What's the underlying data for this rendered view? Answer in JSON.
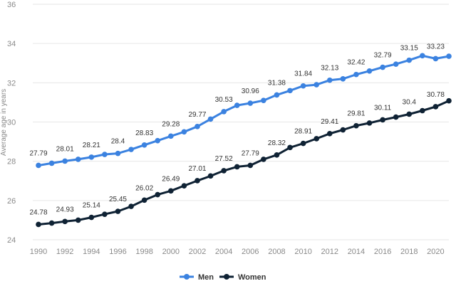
{
  "chart_data": {
    "type": "line",
    "ylabel": "Average age in years",
    "xlabel": "",
    "ylim": [
      24,
      36
    ],
    "yticks": [
      24,
      26,
      28,
      30,
      32,
      34,
      36
    ],
    "xlim": [
      1990,
      2021
    ],
    "xticks": [
      1990,
      1992,
      1994,
      1996,
      1998,
      2000,
      2002,
      2004,
      2006,
      2008,
      2010,
      2012,
      2014,
      2016,
      2018,
      2020
    ],
    "grid": "horizontal",
    "legend_position": "bottom-center",
    "x": [
      1990,
      1991,
      1992,
      1993,
      1994,
      1995,
      1996,
      1997,
      1998,
      1999,
      2000,
      2001,
      2002,
      2003,
      2004,
      2005,
      2006,
      2007,
      2008,
      2009,
      2010,
      2011,
      2012,
      2013,
      2014,
      2015,
      2016,
      2017,
      2018,
      2019,
      2020,
      2021
    ],
    "series": [
      {
        "name": "Men",
        "color": "#3b82e0",
        "values": [
          27.79,
          27.9,
          28.01,
          28.1,
          28.21,
          28.35,
          28.4,
          28.6,
          28.83,
          29.05,
          29.28,
          29.5,
          29.77,
          30.15,
          30.53,
          30.85,
          30.96,
          31.1,
          31.38,
          31.6,
          31.84,
          31.9,
          32.13,
          32.2,
          32.42,
          32.6,
          32.79,
          32.95,
          33.15,
          33.38,
          33.23,
          33.35
        ],
        "labels": {
          "1990": "27.79",
          "1992": "28.01",
          "1994": "28.21",
          "1996": "28.4",
          "1998": "28.83",
          "2000": "29.28",
          "2002": "29.77",
          "2004": "30.53",
          "2006": "30.96",
          "2008": "31.38",
          "2010": "31.84",
          "2012": "32.13",
          "2014": "32.42",
          "2016": "32.79",
          "2018": "33.15",
          "2020": "33.23"
        }
      },
      {
        "name": "Women",
        "color": "#0f2234",
        "values": [
          24.78,
          24.85,
          24.93,
          25.0,
          25.14,
          25.3,
          25.45,
          25.7,
          26.02,
          26.3,
          26.49,
          26.75,
          27.01,
          27.25,
          27.52,
          27.72,
          27.79,
          28.1,
          28.32,
          28.7,
          28.91,
          29.15,
          29.41,
          29.6,
          29.81,
          29.95,
          30.11,
          30.25,
          30.4,
          30.58,
          30.78,
          31.08
        ],
        "labels": {
          "1990": "24.78",
          "1992": "24.93",
          "1994": "25.14",
          "1996": "25.45",
          "1998": "26.02",
          "2000": "26.49",
          "2002": "27.01",
          "2004": "27.52",
          "2006": "27.79",
          "2008": "28.32",
          "2010": "28.91",
          "2012": "29.41",
          "2014": "29.81",
          "2016": "30.11",
          "2018": "30.4",
          "2020": "30.78"
        }
      }
    ]
  }
}
